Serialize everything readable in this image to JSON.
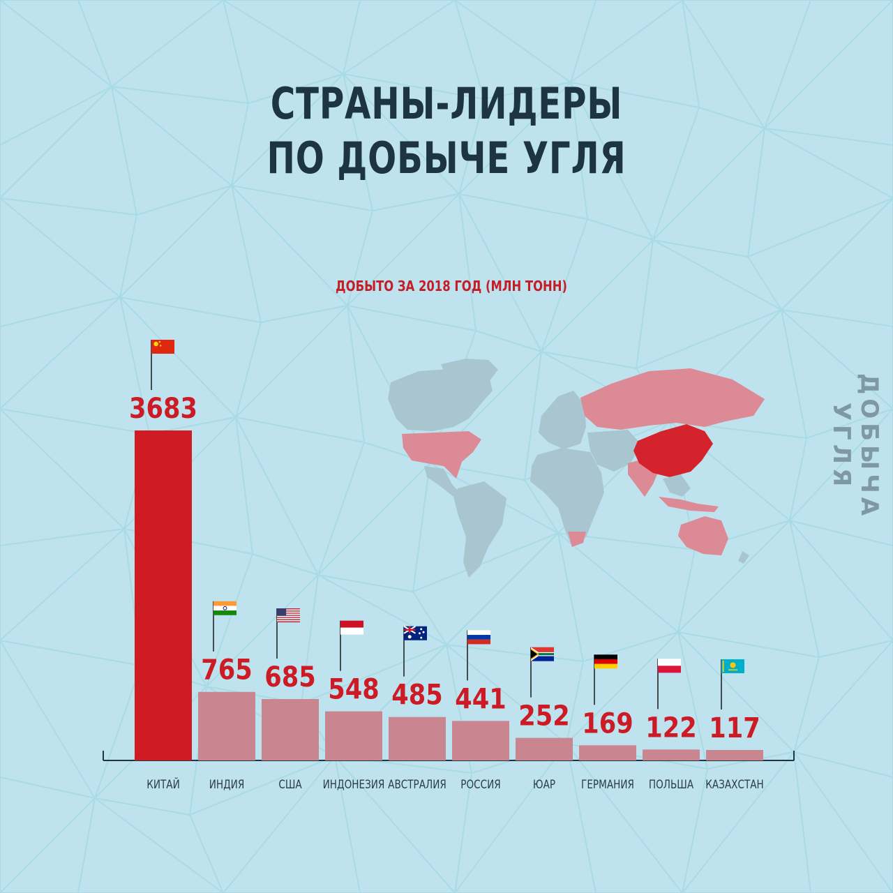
{
  "title_line1": "СТРАНЫ-ЛИДЕРЫ",
  "title_line2": "ПО ДОБЫЧЕ УГЛЯ",
  "subtitle": "ДОБЫТО ЗА 2018 ГОД (МЛН ТОНН)",
  "side_label": "ДОБЫЧА УГЛЯ",
  "colors": {
    "background": "#bee3ef",
    "highlight_bar": "#cf1c24",
    "other_bars": "#c98690",
    "value_text": "#cc1b24",
    "title": "#1d3444",
    "map_land": "#a9c6d0",
    "map_producer": "#dc8a95",
    "map_china": "#d5232d"
  },
  "chart_data": {
    "type": "bar",
    "title": "СТРАНЫ-ЛИДЕРЫ ПО ДОБЫЧЕ УГЛЯ",
    "subtitle": "ДОБЫТО ЗА 2018 ГОД (МЛН ТОНН)",
    "xlabel": "",
    "ylabel": "",
    "categories": [
      "КИТАЙ",
      "ИНДИЯ",
      "США",
      "ИНДОНЕЗИЯ",
      "АВСТРАЛИЯ",
      "РОССИЯ",
      "ЮАР",
      "ГЕРМАНИЯ",
      "ПОЛЬША",
      "КАЗАХСТАН"
    ],
    "values": [
      3683,
      765,
      685,
      548,
      485,
      441,
      252,
      169,
      122,
      117
    ],
    "flags": [
      "china",
      "india",
      "usa",
      "indonesia",
      "australia",
      "russia",
      "south-africa",
      "germany",
      "poland",
      "kazakhstan"
    ],
    "highlight_index": 0,
    "grid": false,
    "legend": "none"
  }
}
